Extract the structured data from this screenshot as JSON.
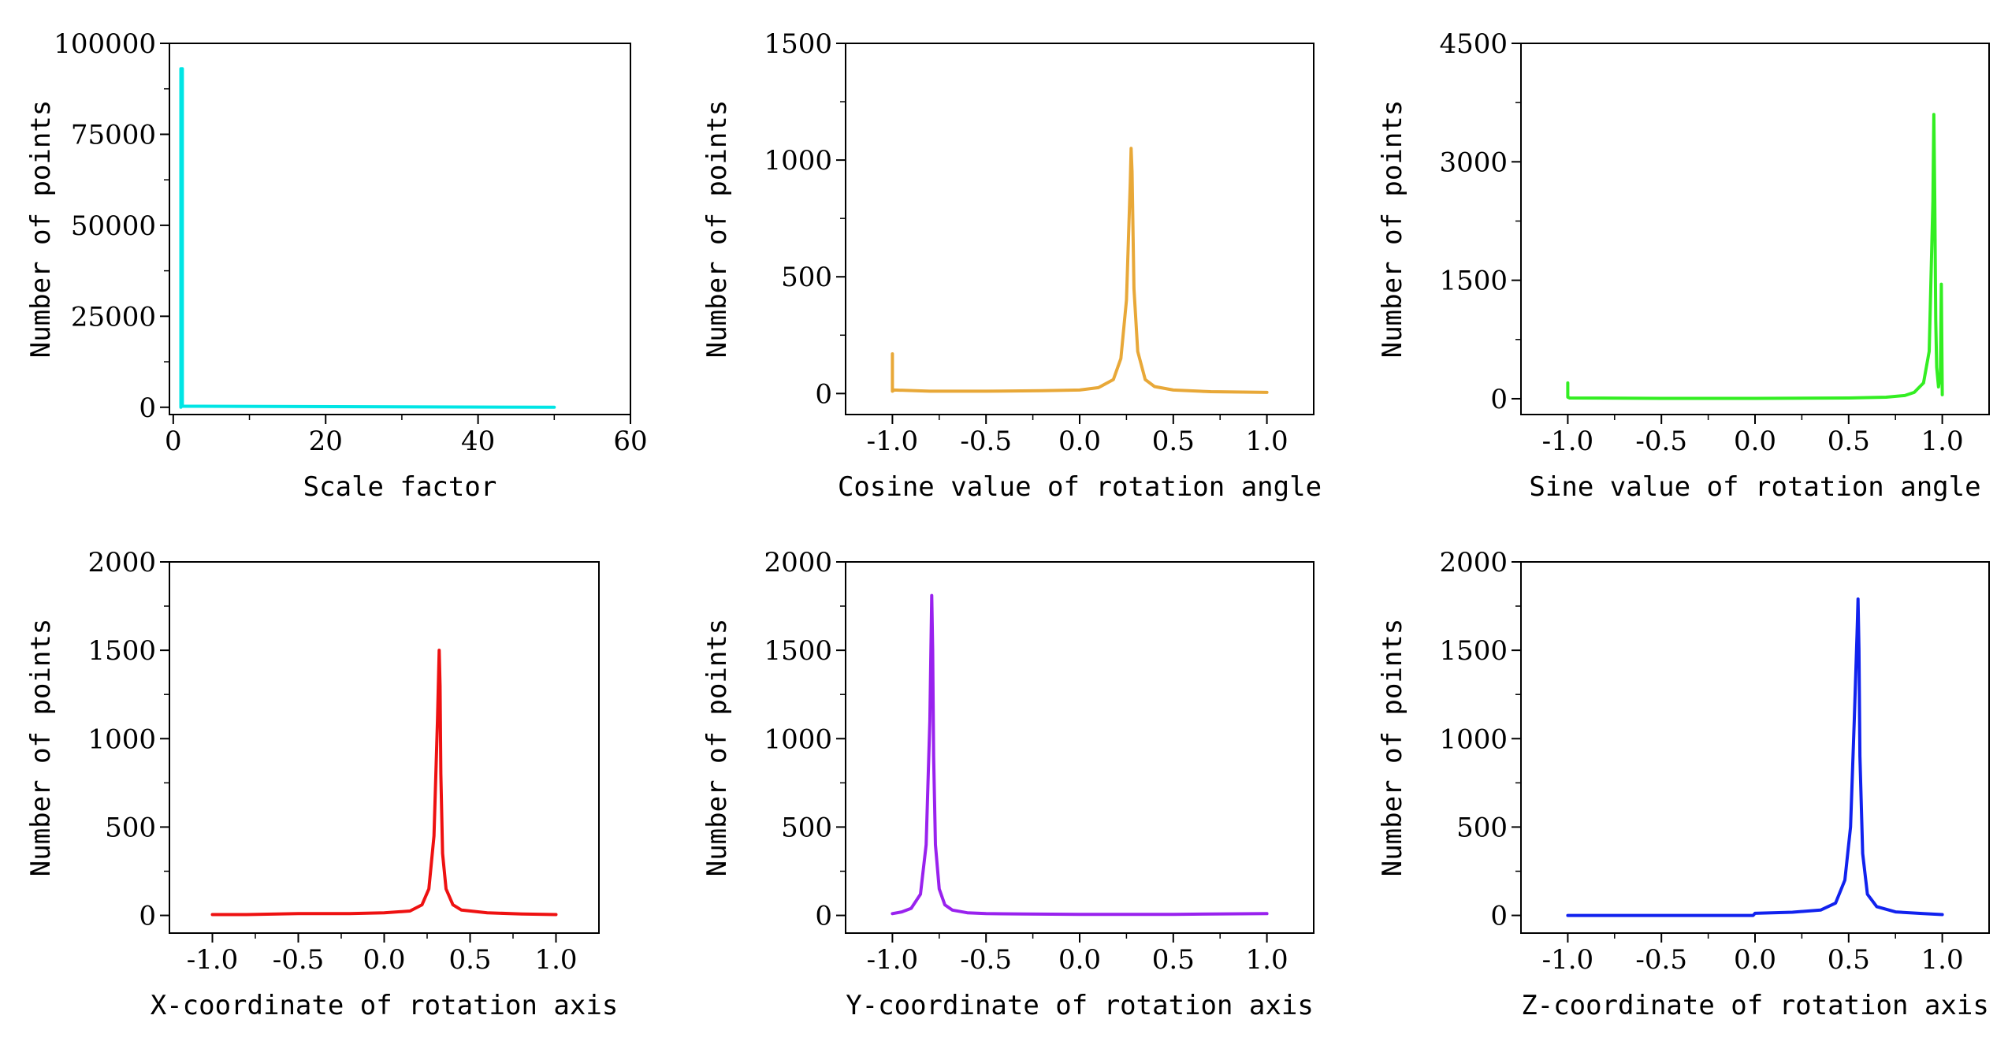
{
  "chart_data": [
    {
      "type": "line",
      "id": "scale",
      "xlabel": "Scale factor",
      "ylabel": "Number of points",
      "xlim": [
        -0.5,
        60
      ],
      "ylim": [
        -2000,
        100000
      ],
      "xticks": [
        0,
        20,
        40,
        60
      ],
      "xtick_labels": [
        "0",
        "20",
        "40",
        "60"
      ],
      "yticks": [
        0,
        25000,
        50000,
        75000,
        100000
      ],
      "ytick_labels": [
        "0",
        "25000",
        "50000",
        "75000",
        "100000"
      ],
      "color": "#00e5e5",
      "series": [
        {
          "name": "Scale factor",
          "x": [
            1.0,
            1.0,
            1.2,
            1.2,
            50
          ],
          "y": [
            0,
            93000,
            93000,
            300,
            0
          ]
        }
      ]
    },
    {
      "type": "line",
      "id": "cosine",
      "xlabel": "Cosine value of rotation angle",
      "ylabel": "Number of points",
      "xlim": [
        -1.25,
        1.25
      ],
      "ylim": [
        -90,
        1500
      ],
      "xticks": [
        -1.0,
        -0.5,
        0.0,
        0.5,
        1.0
      ],
      "xtick_labels": [
        "-1.0",
        "-0.5",
        "0.0",
        "0.5",
        "1.0"
      ],
      "yticks": [
        0,
        500,
        1000,
        1500
      ],
      "ytick_labels": [
        "0",
        "500",
        "1000",
        "1500"
      ],
      "color": "#e8a838",
      "series": [
        {
          "name": "Cosine",
          "x": [
            -1.0,
            -1.0,
            -0.99,
            -0.8,
            -0.5,
            -0.2,
            0.0,
            0.1,
            0.18,
            0.22,
            0.25,
            0.27,
            0.275,
            0.28,
            0.29,
            0.31,
            0.35,
            0.4,
            0.5,
            0.7,
            1.0
          ],
          "y": [
            170,
            10,
            15,
            10,
            10,
            12,
            15,
            25,
            60,
            150,
            400,
            900,
            1050,
            950,
            450,
            180,
            60,
            30,
            15,
            8,
            5
          ]
        }
      ]
    },
    {
      "type": "line",
      "id": "sine",
      "xlabel": "Sine value of rotation angle",
      "ylabel": "Number of points",
      "xlim": [
        -1.25,
        1.25
      ],
      "ylim": [
        -200,
        4500
      ],
      "xticks": [
        -1.0,
        -0.5,
        0.0,
        0.5,
        1.0
      ],
      "xtick_labels": [
        "-1.0",
        "-0.5",
        "0.0",
        "0.5",
        "1.0"
      ],
      "yticks": [
        0,
        1500,
        3000,
        4500
      ],
      "ytick_labels": [
        "0",
        "1500",
        "3000",
        "4500"
      ],
      "color": "#33ee22",
      "series": [
        {
          "name": "Sine",
          "x": [
            -1.0,
            -1.0,
            -0.99,
            -0.5,
            0.0,
            0.5,
            0.7,
            0.8,
            0.85,
            0.9,
            0.93,
            0.95,
            0.955,
            0.96,
            0.965,
            0.97,
            0.98,
            0.99,
            0.995,
            1.0
          ],
          "y": [
            200,
            20,
            10,
            5,
            5,
            10,
            20,
            40,
            80,
            200,
            600,
            2500,
            3600,
            2500,
            1000,
            400,
            150,
            300,
            1450,
            50
          ]
        }
      ]
    },
    {
      "type": "line",
      "id": "x-axis",
      "xlabel": "X-coordinate of rotation axis",
      "ylabel": "Number of points",
      "xlim": [
        -1.25,
        1.25
      ],
      "ylim": [
        -100,
        2000
      ],
      "xticks": [
        -1.0,
        -0.5,
        0.0,
        0.5,
        1.0
      ],
      "xtick_labels": [
        "-1.0",
        "-0.5",
        "0.0",
        "0.5",
        "1.0"
      ],
      "yticks": [
        0,
        500,
        1000,
        1500,
        2000
      ],
      "ytick_labels": [
        "0",
        "500",
        "1000",
        "1500",
        "2000"
      ],
      "color": "#ee1111",
      "series": [
        {
          "name": "X-coordinate",
          "x": [
            -1.0,
            -0.8,
            -0.5,
            -0.2,
            0.0,
            0.15,
            0.22,
            0.26,
            0.29,
            0.31,
            0.32,
            0.325,
            0.33,
            0.34,
            0.36,
            0.4,
            0.45,
            0.6,
            0.8,
            1.0
          ],
          "y": [
            5,
            5,
            10,
            10,
            15,
            25,
            60,
            150,
            450,
            1100,
            1500,
            1300,
            800,
            350,
            150,
            60,
            30,
            15,
            8,
            5
          ]
        }
      ]
    },
    {
      "type": "line",
      "id": "y-axis",
      "xlabel": "Y-coordinate of rotation axis",
      "ylabel": "Number of points",
      "xlim": [
        -1.25,
        1.25
      ],
      "ylim": [
        -100,
        2000
      ],
      "xticks": [
        -1.0,
        -0.5,
        0.0,
        0.5,
        1.0
      ],
      "xtick_labels": [
        "-1.0",
        "-0.5",
        "0.0",
        "0.5",
        "1.0"
      ],
      "yticks": [
        0,
        500,
        1000,
        1500,
        2000
      ],
      "ytick_labels": [
        "0",
        "500",
        "1000",
        "1500",
        "2000"
      ],
      "color": "#9922ee",
      "series": [
        {
          "name": "Y-coordinate",
          "x": [
            -1.0,
            -0.95,
            -0.9,
            -0.85,
            -0.82,
            -0.8,
            -0.79,
            -0.785,
            -0.78,
            -0.77,
            -0.75,
            -0.72,
            -0.68,
            -0.6,
            -0.5,
            -0.3,
            0.0,
            0.5,
            1.0
          ],
          "y": [
            10,
            20,
            40,
            120,
            400,
            1100,
            1810,
            1500,
            900,
            400,
            150,
            60,
            30,
            15,
            10,
            8,
            6,
            6,
            10
          ]
        }
      ]
    },
    {
      "type": "line",
      "id": "z-axis",
      "xlabel": "Z-coordinate of rotation axis",
      "ylabel": "Number of points",
      "xlim": [
        -1.25,
        1.25
      ],
      "ylim": [
        -100,
        2000
      ],
      "xticks": [
        -1.0,
        -0.5,
        0.0,
        0.5,
        1.0
      ],
      "xtick_labels": [
        "-1.0",
        "-0.5",
        "0.0",
        "0.5",
        "1.0"
      ],
      "yticks": [
        0,
        500,
        1000,
        1500,
        2000
      ],
      "ytick_labels": [
        "0",
        "500",
        "1000",
        "1500",
        "2000"
      ],
      "color": "#1122ee",
      "series": [
        {
          "name": "Z-coordinate",
          "x": [
            -1.0,
            -0.5,
            -0.01,
            0.0,
            0.2,
            0.35,
            0.43,
            0.48,
            0.51,
            0.53,
            0.545,
            0.55,
            0.555,
            0.56,
            0.575,
            0.6,
            0.65,
            0.75,
            0.9,
            1.0
          ],
          "y": [
            0,
            0,
            0,
            12,
            18,
            30,
            70,
            200,
            500,
            1100,
            1600,
            1790,
            1500,
            900,
            350,
            120,
            50,
            20,
            10,
            5
          ]
        }
      ]
    }
  ]
}
